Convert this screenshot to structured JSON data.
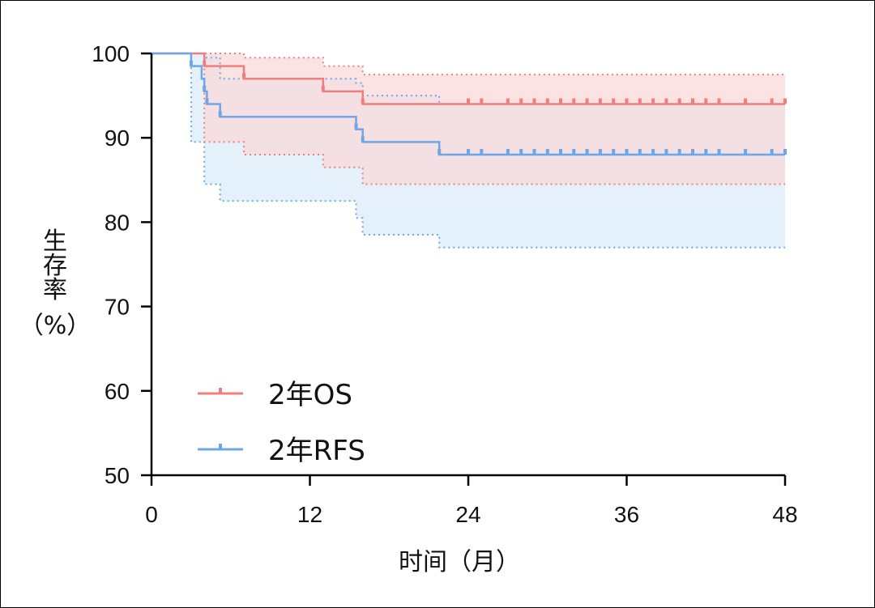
{
  "chart_data": {
    "type": "line",
    "subtype": "kaplan-meier-step",
    "xlabel": "时间（月）",
    "ylabel": "生存率（%）",
    "ylabel_chars": [
      "生",
      "存",
      "率",
      "（%）"
    ],
    "xlim": [
      0,
      48
    ],
    "ylim": [
      50,
      100
    ],
    "x_ticks": [
      0,
      12,
      24,
      36,
      48
    ],
    "y_ticks": [
      50,
      60,
      70,
      80,
      90,
      100
    ],
    "legend_position": "lower-left",
    "series": [
      {
        "name": "2年OS",
        "color": "#ef7f7f",
        "band_color": "#f9dada",
        "steps": [
          [
            0,
            100
          ],
          [
            4,
            98.5
          ],
          [
            7,
            97
          ],
          [
            13,
            95.5
          ],
          [
            16,
            94
          ],
          [
            48,
            94
          ]
        ],
        "ci_upper": [
          [
            0,
            100
          ],
          [
            4,
            100
          ],
          [
            7,
            99.5
          ],
          [
            13,
            98.5
          ],
          [
            16,
            97.5
          ],
          [
            48,
            97.5
          ]
        ],
        "ci_lower": [
          [
            0,
            100
          ],
          [
            4,
            89.5
          ],
          [
            7,
            88
          ],
          [
            13,
            86.5
          ],
          [
            16,
            84.5
          ],
          [
            48,
            84.5
          ]
        ],
        "censor_times": [
          4,
          7,
          13,
          16,
          24,
          25,
          27,
          28,
          29,
          30,
          31,
          32,
          33,
          34,
          35,
          36,
          37,
          38,
          39,
          40,
          41,
          42,
          43,
          45,
          47,
          48
        ]
      },
      {
        "name": "2年RFS",
        "color": "#6fa6e6",
        "band_color": "#e4f0fa",
        "steps": [
          [
            0,
            100
          ],
          [
            3,
            98.5
          ],
          [
            3.8,
            97
          ],
          [
            4,
            95.5
          ],
          [
            4.2,
            94
          ],
          [
            5.2,
            92.5
          ],
          [
            15.5,
            91
          ],
          [
            16,
            89.5
          ],
          [
            21.8,
            88
          ],
          [
            48,
            88
          ]
        ],
        "ci_upper": [
          [
            0,
            100
          ],
          [
            3,
            100
          ],
          [
            4,
            99.5
          ],
          [
            5.2,
            97
          ],
          [
            15.5,
            96.5
          ],
          [
            16,
            95
          ],
          [
            21.8,
            94
          ],
          [
            48,
            94
          ]
        ],
        "ci_lower": [
          [
            0,
            100
          ],
          [
            3,
            89.5
          ],
          [
            4,
            84.5
          ],
          [
            5.2,
            82.5
          ],
          [
            15.5,
            80.5
          ],
          [
            16,
            78.5
          ],
          [
            21.8,
            77
          ],
          [
            48,
            77
          ]
        ],
        "censor_times": [
          3,
          4,
          4.2,
          5.2,
          15.5,
          16,
          21.8,
          24,
          25,
          27,
          28,
          29,
          30,
          31,
          32,
          33,
          34,
          35,
          36,
          37,
          38,
          39,
          40,
          41,
          42,
          43,
          45,
          47,
          48
        ]
      }
    ]
  }
}
